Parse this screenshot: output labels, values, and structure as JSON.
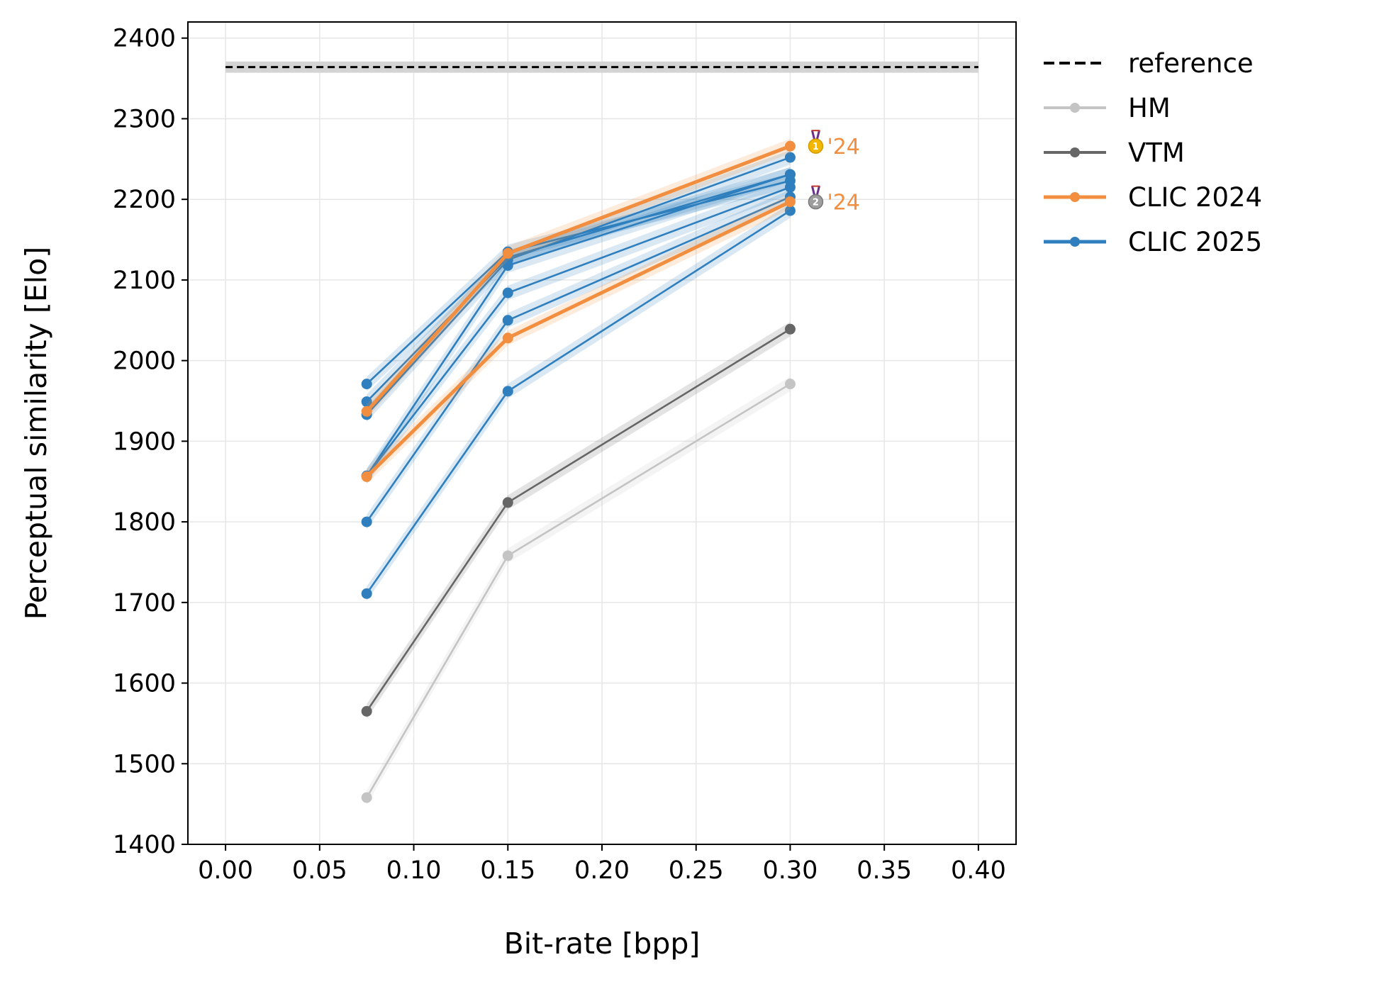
{
  "chart_data": {
    "type": "line",
    "xlabel": "Bit-rate [bpp]",
    "ylabel": "Perceptual similarity [Elo]",
    "xlim": [
      -0.02,
      0.42
    ],
    "ylim": [
      1400,
      2420
    ],
    "xticks": [
      0.0,
      0.05,
      0.1,
      0.15,
      0.2,
      0.25,
      0.3,
      0.35,
      0.4
    ],
    "xtick_labels": [
      "0.00",
      "0.05",
      "0.10",
      "0.15",
      "0.20",
      "0.25",
      "0.30",
      "0.35",
      "0.40"
    ],
    "yticks": [
      1400,
      1500,
      1600,
      1700,
      1800,
      1900,
      2000,
      2100,
      2200,
      2300,
      2400
    ],
    "ytick_labels": [
      "1400",
      "1500",
      "1600",
      "1700",
      "1800",
      "1900",
      "2000",
      "2100",
      "2200",
      "2300",
      "2400"
    ],
    "grid": true,
    "legend_position": "outside-top-right",
    "reference": {
      "name": "reference",
      "x": [
        0.0,
        0.4
      ],
      "y": 2364,
      "band": [
        2357,
        2371
      ],
      "color": "#000000"
    },
    "legend": [
      {
        "label": "reference",
        "style": "dashed",
        "color": "#000000"
      },
      {
        "label": "HM",
        "style": "solid-marker",
        "color": "#c4c4c4"
      },
      {
        "label": "VTM",
        "style": "solid-marker",
        "color": "#666666"
      },
      {
        "label": "CLIC 2024",
        "style": "solid-marker-thick",
        "color": "#f28e3f"
      },
      {
        "label": "CLIC 2025",
        "style": "solid-marker-thick",
        "color": "#2f7fbf"
      }
    ],
    "series": [
      {
        "name": "HM",
        "group": "HM",
        "color": "#c4c4c4",
        "x": [
          0.075,
          0.15,
          0.3
        ],
        "y": [
          1458,
          1758,
          1971
        ]
      },
      {
        "name": "VTM",
        "group": "VTM",
        "color": "#666666",
        "x": [
          0.075,
          0.15,
          0.3
        ],
        "y": [
          1565,
          1824,
          2039
        ]
      },
      {
        "group": "CLIC 2025",
        "color": "#2f7fbf",
        "x": [
          0.075,
          0.15,
          0.3
        ],
        "y": [
          1971,
          2135,
          2223
        ]
      },
      {
        "group": "CLIC 2025",
        "color": "#2f7fbf",
        "x": [
          0.075,
          0.15,
          0.3
        ],
        "y": [
          1949,
          2128,
          2231
        ]
      },
      {
        "group": "CLIC 2025",
        "color": "#2f7fbf",
        "x": [
          0.075,
          0.15,
          0.3
        ],
        "y": [
          1933,
          2125,
          2252
        ]
      },
      {
        "group": "CLIC 2025",
        "color": "#2f7fbf",
        "x": [
          0.075,
          0.15,
          0.3
        ],
        "y": [
          1857,
          2118,
          2231
        ]
      },
      {
        "group": "CLIC 2025",
        "color": "#2f7fbf",
        "x": [
          0.075,
          0.15,
          0.3
        ],
        "y": [
          1857,
          2084,
          2215
        ]
      },
      {
        "group": "CLIC 2025",
        "color": "#2f7fbf",
        "x": [
          0.075,
          0.15,
          0.3
        ],
        "y": [
          1800,
          2050,
          2203
        ]
      },
      {
        "group": "CLIC 2025",
        "color": "#2f7fbf",
        "x": [
          0.075,
          0.15,
          0.3
        ],
        "y": [
          1711,
          1962,
          2186
        ]
      },
      {
        "group": "CLIC 2024",
        "color": "#f28e3f",
        "x": [
          0.075,
          0.15,
          0.3
        ],
        "y": [
          1937,
          2133,
          2266
        ]
      },
      {
        "group": "CLIC 2024",
        "color": "#f28e3f",
        "x": [
          0.075,
          0.15,
          0.3
        ],
        "y": [
          1856,
          2028,
          2197
        ]
      }
    ],
    "annotations": [
      {
        "text": "'24",
        "medal": "gold-medal-icon",
        "rank": "1",
        "x": 0.3,
        "y": 2266,
        "color": "#f28e3f"
      },
      {
        "text": "'24",
        "medal": "silver-medal-icon",
        "rank": "2",
        "x": 0.3,
        "y": 2197,
        "color": "#f28e3f"
      }
    ]
  }
}
